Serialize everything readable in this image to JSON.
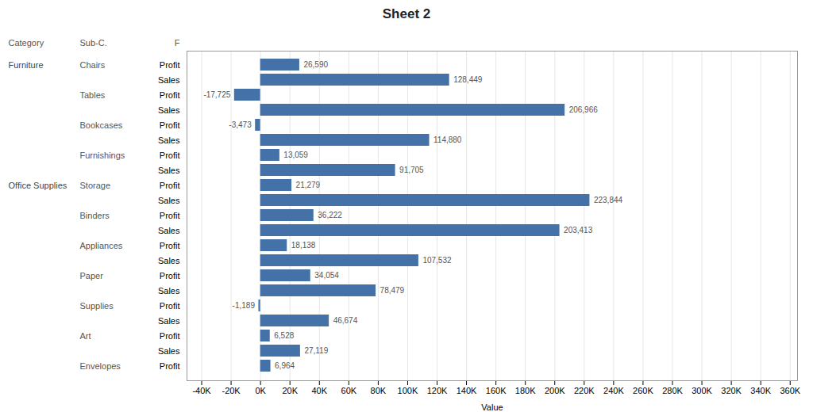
{
  "chart_data": {
    "type": "bar",
    "orientation": "horizontal",
    "title": "Sheet 2",
    "xlabel": "Value",
    "column_headers": [
      "Category",
      "Sub-C.",
      "F"
    ],
    "categories": [
      "Profit",
      "Sales",
      "Profit",
      "Sales",
      "Profit",
      "Sales",
      "Profit",
      "Sales",
      "Profit",
      "Sales",
      "Profit",
      "Sales",
      "Profit",
      "Sales",
      "Profit",
      "Sales",
      "Profit",
      "Sales",
      "Profit",
      "Sales",
      "Profit"
    ],
    "sub_categories": [
      "Chairs",
      null,
      "Tables",
      null,
      "Bookcases",
      null,
      "Furnishings",
      null,
      "Storage",
      null,
      "Binders",
      null,
      "Appliances",
      null,
      "Paper",
      null,
      "Supplies",
      null,
      "Art",
      null,
      "Envelopes"
    ],
    "category_groups": [
      "Furniture",
      null,
      null,
      null,
      null,
      null,
      null,
      null,
      "Office Supplies",
      null,
      null,
      null,
      null,
      null,
      null,
      null,
      null,
      null,
      null,
      null,
      null
    ],
    "values": [
      26590,
      128449,
      -17725,
      206966,
      -3473,
      114880,
      13059,
      91705,
      21279,
      223844,
      36222,
      203413,
      18138,
      107532,
      34054,
      78479,
      -1189,
      46674,
      6528,
      27119,
      6964
    ],
    "value_labels": [
      "26,590",
      "128,449",
      "-17,725",
      "206,966",
      "-3,473",
      "114,880",
      "13,059",
      "91,705",
      "21,279",
      "223,844",
      "36,222",
      "203,413",
      "18,138",
      "107,532",
      "34,054",
      "78,479",
      "-1,189",
      "46,674",
      "6,528",
      "27,119",
      "6,964"
    ],
    "color": "#4472a8",
    "data_labels": true,
    "grid": true,
    "xlim": [
      -50000,
      365000
    ],
    "xticks": [
      {
        "value": -40000,
        "label": "-40K"
      },
      {
        "value": -20000,
        "label": "-20K"
      },
      {
        "value": 0,
        "label": "0K"
      },
      {
        "value": 20000,
        "label": "20K"
      },
      {
        "value": 40000,
        "label": "40K"
      },
      {
        "value": 60000,
        "label": "60K"
      },
      {
        "value": 80000,
        "label": "80K"
      },
      {
        "value": 100000,
        "label": "100K"
      },
      {
        "value": 120000,
        "label": "120K"
      },
      {
        "value": 140000,
        "label": "140K"
      },
      {
        "value": 160000,
        "label": "160K"
      },
      {
        "value": 180000,
        "label": "180K"
      },
      {
        "value": 200000,
        "label": "200K"
      },
      {
        "value": 220000,
        "label": "220K"
      },
      {
        "value": 240000,
        "label": "240K"
      },
      {
        "value": 260000,
        "label": "260K"
      },
      {
        "value": 280000,
        "label": "280K"
      },
      {
        "value": 300000,
        "label": "300K"
      },
      {
        "value": 320000,
        "label": "320K"
      },
      {
        "value": 340000,
        "label": "340K"
      },
      {
        "value": 360000,
        "label": "360K"
      }
    ]
  }
}
